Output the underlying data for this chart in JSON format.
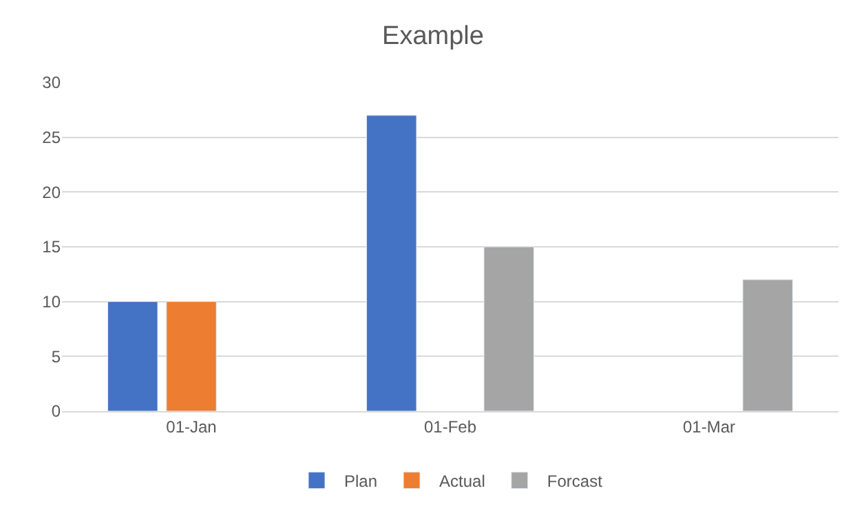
{
  "chart_data": {
    "type": "bar",
    "title": "Example",
    "categories": [
      "01-Jan",
      "01-Feb",
      "01-Mar"
    ],
    "series": [
      {
        "name": "Plan",
        "color": "#4472c4",
        "values": [
          10,
          27,
          null
        ]
      },
      {
        "name": "Actual",
        "color": "#ed7d31",
        "values": [
          10,
          null,
          null
        ]
      },
      {
        "name": "Forcast",
        "color": "#a5a5a5",
        "values": [
          null,
          15,
          12
        ]
      }
    ],
    "ylim": [
      0,
      30
    ],
    "yticks": [
      0,
      5,
      10,
      15,
      20,
      25,
      30
    ],
    "grid": "y",
    "legend": "bottom"
  }
}
